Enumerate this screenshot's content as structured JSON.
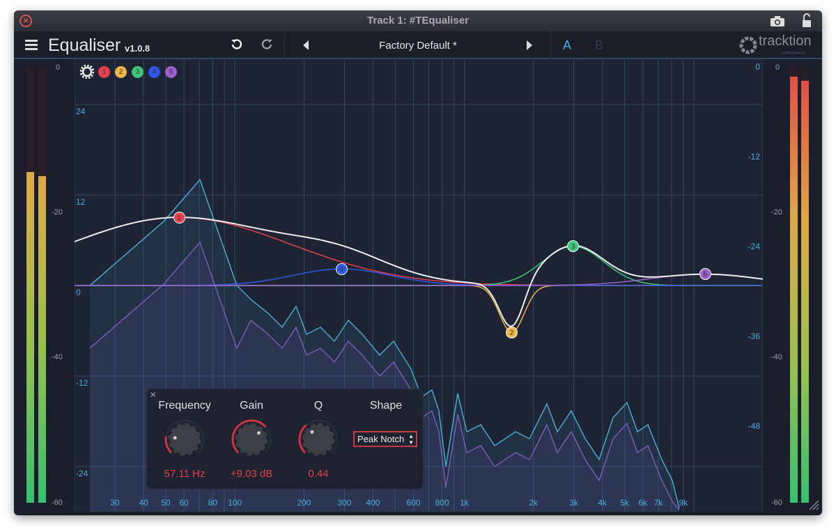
{
  "window": {
    "title": "Track 1: #TEqualiser"
  },
  "header": {
    "app_name": "Equaliser",
    "version": "v1.0.8",
    "preset": "Factory Default *",
    "ab_a": "A",
    "ab_b": "B",
    "logo_text": "tracktion",
    "logo_sub": "CORPORATION"
  },
  "bands": [
    {
      "id": "1",
      "color": "#e8404a",
      "freq_hz": 57.11,
      "gain_db": 9.03,
      "q": 0.44
    },
    {
      "id": "2",
      "color": "#f0b545",
      "freq_hz": 1610,
      "gain_db": -6.2,
      "q": 4.0
    },
    {
      "id": "3",
      "color": "#3cc77a",
      "freq_hz": 2980,
      "gain_db": 5.2,
      "q": 1.6
    },
    {
      "id": "4",
      "color": "#2f56e8",
      "freq_hz": 292,
      "gain_db": 2.2,
      "q": 1.0
    },
    {
      "id": "5",
      "color": "#9b5fd0",
      "freq_hz": 11200,
      "gain_db": 1.5,
      "q": 0.9
    }
  ],
  "gain_scale": [
    "24",
    "12",
    "0",
    "-12",
    "-24"
  ],
  "spectrum_scale": [
    "0",
    "-12",
    "-24",
    "-36",
    "-48"
  ],
  "meter_scale": [
    "0",
    "-20",
    "-40",
    "-60"
  ],
  "freq_labels": [
    "30",
    "40",
    "50",
    "60",
    "80",
    "100",
    "200",
    "300",
    "400",
    "600",
    "800",
    "1k",
    "2k",
    "3k",
    "4k",
    "5k",
    "6k",
    "7k",
    "9k"
  ],
  "freq_values": [
    30,
    40,
    50,
    60,
    80,
    100,
    200,
    300,
    400,
    600,
    800,
    1000,
    2000,
    3000,
    4000,
    5000,
    6000,
    7000,
    9000
  ],
  "panel": {
    "frequency_label": "Frequency",
    "gain_label": "Gain",
    "q_label": "Q",
    "shape_label": "Shape",
    "frequency_value": "57.11 Hz",
    "gain_value": "+9.03 dB",
    "q_value": "0.44",
    "shape_value": "Peak Notch",
    "frequency_norm": 0.2,
    "gain_norm": 0.68,
    "q_norm": 0.35
  }
}
